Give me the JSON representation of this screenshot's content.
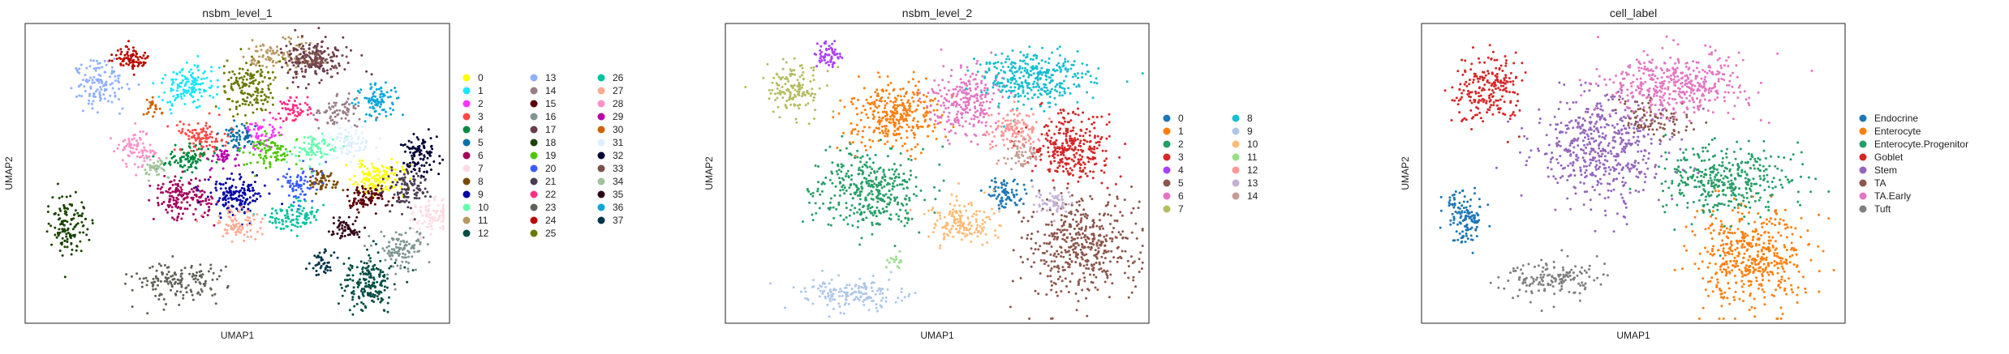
{
  "figure": {
    "panels": [
      {
        "title": "nsbm_level_1",
        "xlabel": "UMAP1",
        "ylabel": "UMAP2",
        "legend_columns": 3,
        "legend": [
          {
            "label": "0",
            "color": "#ffff00"
          },
          {
            "label": "1",
            "color": "#1ce6ff"
          },
          {
            "label": "2",
            "color": "#ff34ff"
          },
          {
            "label": "3",
            "color": "#ff4a46"
          },
          {
            "label": "4",
            "color": "#008941"
          },
          {
            "label": "5",
            "color": "#006fa6"
          },
          {
            "label": "6",
            "color": "#a30059"
          },
          {
            "label": "7",
            "color": "#ffdbe5"
          },
          {
            "label": "8",
            "color": "#7a4900"
          },
          {
            "label": "9",
            "color": "#0000a6"
          },
          {
            "label": "10",
            "color": "#63ffac"
          },
          {
            "label": "11",
            "color": "#b79762"
          },
          {
            "label": "12",
            "color": "#004d43"
          },
          {
            "label": "13",
            "color": "#8fb0ff"
          },
          {
            "label": "14",
            "color": "#997d87"
          },
          {
            "label": "15",
            "color": "#5a0007"
          },
          {
            "label": "16",
            "color": "#809693"
          },
          {
            "label": "17",
            "color": "#6a3a4c"
          },
          {
            "label": "18",
            "color": "#1b4400"
          },
          {
            "label": "19",
            "color": "#4fc601"
          },
          {
            "label": "20",
            "color": "#3b5dff"
          },
          {
            "label": "21",
            "color": "#4a3b53"
          },
          {
            "label": "22",
            "color": "#ff2f80"
          },
          {
            "label": "23",
            "color": "#61615a"
          },
          {
            "label": "24",
            "color": "#ba0900"
          },
          {
            "label": "25",
            "color": "#6b7900"
          },
          {
            "label": "26",
            "color": "#00c2a0"
          },
          {
            "label": "27",
            "color": "#ffaa92"
          },
          {
            "label": "28",
            "color": "#ff90c9"
          },
          {
            "label": "29",
            "color": "#b903aa"
          },
          {
            "label": "30",
            "color": "#d16100"
          },
          {
            "label": "31",
            "color": "#ddefff"
          },
          {
            "label": "32",
            "color": "#000035"
          },
          {
            "label": "33",
            "color": "#7b4f4b"
          },
          {
            "label": "34",
            "color": "#a1c299"
          },
          {
            "label": "35",
            "color": "#300018"
          },
          {
            "label": "36",
            "color": "#0aa6d8"
          },
          {
            "label": "37",
            "color": "#013349"
          }
        ]
      },
      {
        "title": "nsbm_level_2",
        "xlabel": "UMAP1",
        "ylabel": "UMAP2",
        "legend_columns": 2,
        "legend": [
          {
            "label": "0",
            "color": "#1f77b4"
          },
          {
            "label": "1",
            "color": "#ff7f0e"
          },
          {
            "label": "2",
            "color": "#279e68"
          },
          {
            "label": "3",
            "color": "#d62728"
          },
          {
            "label": "4",
            "color": "#aa40fc"
          },
          {
            "label": "5",
            "color": "#8c564b"
          },
          {
            "label": "6",
            "color": "#e377c2"
          },
          {
            "label": "7",
            "color": "#b5bd61"
          },
          {
            "label": "8",
            "color": "#17becf"
          },
          {
            "label": "9",
            "color": "#aec7e8"
          },
          {
            "label": "10",
            "color": "#ffbb78"
          },
          {
            "label": "11",
            "color": "#98df8a"
          },
          {
            "label": "12",
            "color": "#ff9896"
          },
          {
            "label": "13",
            "color": "#c5b0d5"
          },
          {
            "label": "14",
            "color": "#c49c94"
          }
        ]
      },
      {
        "title": "cell_label",
        "xlabel": "UMAP1",
        "ylabel": "UMAP2",
        "legend_columns": 1,
        "legend": [
          {
            "label": "Endocrine",
            "color": "#1f77b4"
          },
          {
            "label": "Enterocyte",
            "color": "#ff7f0e"
          },
          {
            "label": "Enterocyte.Progenitor",
            "color": "#279e68"
          },
          {
            "label": "Goblet",
            "color": "#d62728"
          },
          {
            "label": "Stem",
            "color": "#9467bd"
          },
          {
            "label": "TA",
            "color": "#8c564b"
          },
          {
            "label": "TA.Early",
            "color": "#e377c2"
          },
          {
            "label": "Tuft",
            "color": "#7f7f7f"
          }
        ]
      }
    ]
  },
  "chart_data": [
    {
      "type": "scatter",
      "title": "nsbm_level_1",
      "xlabel": "UMAP1",
      "ylabel": "UMAP2",
      "grid": false,
      "ticks": false,
      "legend_position": "right",
      "clusters": [
        {
          "label": "0",
          "color": "#ffff00",
          "cx": 0.83,
          "cy": 0.48,
          "rx": 0.05,
          "ry": 0.05,
          "n": 140
        },
        {
          "label": "1",
          "color": "#1ce6ff",
          "cx": 0.39,
          "cy": 0.79,
          "rx": 0.06,
          "ry": 0.07,
          "n": 150
        },
        {
          "label": "2",
          "color": "#ff34ff",
          "cx": 0.55,
          "cy": 0.63,
          "rx": 0.05,
          "ry": 0.05,
          "n": 60
        },
        {
          "label": "3",
          "color": "#ff4a46",
          "cx": 0.42,
          "cy": 0.62,
          "rx": 0.06,
          "ry": 0.05,
          "n": 110
        },
        {
          "label": "4",
          "color": "#008941",
          "cx": 0.38,
          "cy": 0.55,
          "rx": 0.05,
          "ry": 0.04,
          "n": 90
        },
        {
          "label": "5",
          "color": "#006fa6",
          "cx": 0.51,
          "cy": 0.62,
          "rx": 0.04,
          "ry": 0.04,
          "n": 60
        },
        {
          "label": "6",
          "color": "#a30059",
          "cx": 0.37,
          "cy": 0.42,
          "rx": 0.06,
          "ry": 0.07,
          "n": 160
        },
        {
          "label": "7",
          "color": "#ffdbe5",
          "cx": 0.96,
          "cy": 0.36,
          "rx": 0.05,
          "ry": 0.05,
          "n": 100
        },
        {
          "label": "8",
          "color": "#7a4900",
          "cx": 0.7,
          "cy": 0.47,
          "rx": 0.04,
          "ry": 0.04,
          "n": 60
        },
        {
          "label": "9",
          "color": "#0000a6",
          "cx": 0.5,
          "cy": 0.43,
          "rx": 0.06,
          "ry": 0.06,
          "n": 150
        },
        {
          "label": "10",
          "color": "#63ffac",
          "cx": 0.68,
          "cy": 0.58,
          "rx": 0.05,
          "ry": 0.04,
          "n": 80
        },
        {
          "label": "11",
          "color": "#b79762",
          "cx": 0.6,
          "cy": 0.89,
          "rx": 0.07,
          "ry": 0.05,
          "n": 110
        },
        {
          "label": "12",
          "color": "#004d43",
          "cx": 0.81,
          "cy": 0.13,
          "rx": 0.06,
          "ry": 0.08,
          "n": 180
        },
        {
          "label": "13",
          "color": "#8fb0ff",
          "cx": 0.18,
          "cy": 0.8,
          "rx": 0.06,
          "ry": 0.07,
          "n": 130
        },
        {
          "label": "14",
          "color": "#997d87",
          "cx": 0.74,
          "cy": 0.7,
          "rx": 0.05,
          "ry": 0.05,
          "n": 70
        },
        {
          "label": "15",
          "color": "#5a0007",
          "cx": 0.8,
          "cy": 0.42,
          "rx": 0.05,
          "ry": 0.04,
          "n": 90
        },
        {
          "label": "16",
          "color": "#809693",
          "cx": 0.89,
          "cy": 0.25,
          "rx": 0.05,
          "ry": 0.06,
          "n": 110
        },
        {
          "label": "17",
          "color": "#6a3a4c",
          "cx": 0.68,
          "cy": 0.88,
          "rx": 0.07,
          "ry": 0.06,
          "n": 150
        },
        {
          "label": "18",
          "color": "#1b4400",
          "cx": 0.1,
          "cy": 0.33,
          "rx": 0.04,
          "ry": 0.1,
          "n": 130
        },
        {
          "label": "19",
          "color": "#4fc601",
          "cx": 0.58,
          "cy": 0.57,
          "rx": 0.05,
          "ry": 0.05,
          "n": 90
        },
        {
          "label": "20",
          "color": "#3b5dff",
          "cx": 0.65,
          "cy": 0.46,
          "rx": 0.04,
          "ry": 0.05,
          "n": 70
        },
        {
          "label": "21",
          "color": "#4a3b53",
          "cx": 0.9,
          "cy": 0.45,
          "rx": 0.05,
          "ry": 0.06,
          "n": 110
        },
        {
          "label": "22",
          "color": "#ff2f80",
          "cx": 0.63,
          "cy": 0.71,
          "rx": 0.04,
          "ry": 0.04,
          "n": 60
        },
        {
          "label": "23",
          "color": "#61615a",
          "cx": 0.37,
          "cy": 0.14,
          "rx": 0.1,
          "ry": 0.06,
          "n": 150
        },
        {
          "label": "24",
          "color": "#ba0900",
          "cx": 0.25,
          "cy": 0.88,
          "rx": 0.04,
          "ry": 0.04,
          "n": 80
        },
        {
          "label": "25",
          "color": "#6b7900",
          "cx": 0.53,
          "cy": 0.79,
          "rx": 0.06,
          "ry": 0.08,
          "n": 160
        },
        {
          "label": "26",
          "color": "#00c2a0",
          "cx": 0.63,
          "cy": 0.36,
          "rx": 0.06,
          "ry": 0.04,
          "n": 100
        },
        {
          "label": "27",
          "color": "#ffaa92",
          "cx": 0.5,
          "cy": 0.33,
          "rx": 0.05,
          "ry": 0.04,
          "n": 80
        },
        {
          "label": "28",
          "color": "#ff90c9",
          "cx": 0.26,
          "cy": 0.58,
          "rx": 0.04,
          "ry": 0.05,
          "n": 80
        },
        {
          "label": "29",
          "color": "#b903aa",
          "cx": 0.46,
          "cy": 0.55,
          "rx": 0.03,
          "ry": 0.03,
          "n": 40
        },
        {
          "label": "30",
          "color": "#d16100",
          "cx": 0.3,
          "cy": 0.72,
          "rx": 0.02,
          "ry": 0.03,
          "n": 25
        },
        {
          "label": "31",
          "color": "#ddefff",
          "cx": 0.77,
          "cy": 0.6,
          "rx": 0.05,
          "ry": 0.05,
          "n": 80
        },
        {
          "label": "32",
          "color": "#000035",
          "cx": 0.93,
          "cy": 0.56,
          "rx": 0.04,
          "ry": 0.06,
          "n": 100
        },
        {
          "label": "33",
          "color": "#7b4f4b",
          "cx": 0.69,
          "cy": 0.88,
          "rx": 0.04,
          "ry": 0.04,
          "n": 60
        },
        {
          "label": "34",
          "color": "#a1c299",
          "cx": 0.3,
          "cy": 0.52,
          "rx": 0.03,
          "ry": 0.03,
          "n": 40
        },
        {
          "label": "35",
          "color": "#300018",
          "cx": 0.75,
          "cy": 0.32,
          "rx": 0.04,
          "ry": 0.04,
          "n": 60
        },
        {
          "label": "36",
          "color": "#0aa6d8",
          "cx": 0.83,
          "cy": 0.74,
          "rx": 0.05,
          "ry": 0.05,
          "n": 90
        },
        {
          "label": "37",
          "color": "#013349",
          "cx": 0.7,
          "cy": 0.2,
          "rx": 0.03,
          "ry": 0.04,
          "n": 40
        }
      ]
    },
    {
      "type": "scatter",
      "title": "nsbm_level_2",
      "xlabel": "UMAP1",
      "ylabel": "UMAP2",
      "grid": false,
      "ticks": false,
      "legend_position": "right",
      "clusters": [
        {
          "label": "0",
          "color": "#1f77b4",
          "cx": 0.66,
          "cy": 0.43,
          "rx": 0.04,
          "ry": 0.05,
          "n": 80
        },
        {
          "label": "1",
          "color": "#ff7f0e",
          "cx": 0.4,
          "cy": 0.7,
          "rx": 0.1,
          "ry": 0.1,
          "n": 320
        },
        {
          "label": "2",
          "color": "#279e68",
          "cx": 0.34,
          "cy": 0.44,
          "rx": 0.12,
          "ry": 0.12,
          "n": 380
        },
        {
          "label": "3",
          "color": "#d62728",
          "cx": 0.82,
          "cy": 0.58,
          "rx": 0.09,
          "ry": 0.1,
          "n": 300
        },
        {
          "label": "4",
          "color": "#aa40fc",
          "cx": 0.24,
          "cy": 0.89,
          "rx": 0.03,
          "ry": 0.04,
          "n": 60
        },
        {
          "label": "5",
          "color": "#8c564b",
          "cx": 0.84,
          "cy": 0.25,
          "rx": 0.12,
          "ry": 0.15,
          "n": 450
        },
        {
          "label": "6",
          "color": "#e377c2",
          "cx": 0.57,
          "cy": 0.74,
          "rx": 0.08,
          "ry": 0.1,
          "n": 260
        },
        {
          "label": "7",
          "color": "#b5bd61",
          "cx": 0.16,
          "cy": 0.78,
          "rx": 0.06,
          "ry": 0.08,
          "n": 150
        },
        {
          "label": "8",
          "color": "#17becf",
          "cx": 0.73,
          "cy": 0.82,
          "rx": 0.12,
          "ry": 0.08,
          "n": 340
        },
        {
          "label": "9",
          "color": "#aec7e8",
          "cx": 0.3,
          "cy": 0.1,
          "rx": 0.11,
          "ry": 0.05,
          "n": 160
        },
        {
          "label": "10",
          "color": "#ffbb78",
          "cx": 0.56,
          "cy": 0.34,
          "rx": 0.08,
          "ry": 0.06,
          "n": 160
        },
        {
          "label": "11",
          "color": "#98df8a",
          "cx": 0.4,
          "cy": 0.2,
          "rx": 0.02,
          "ry": 0.02,
          "n": 15
        },
        {
          "label": "12",
          "color": "#ff9896",
          "cx": 0.68,
          "cy": 0.64,
          "rx": 0.06,
          "ry": 0.06,
          "n": 120
        },
        {
          "label": "13",
          "color": "#c5b0d5",
          "cx": 0.78,
          "cy": 0.4,
          "rx": 0.04,
          "ry": 0.04,
          "n": 60
        },
        {
          "label": "14",
          "color": "#c49c94",
          "cx": 0.7,
          "cy": 0.56,
          "rx": 0.04,
          "ry": 0.04,
          "n": 50
        }
      ]
    },
    {
      "type": "scatter",
      "title": "cell_label",
      "xlabel": "UMAP1",
      "ylabel": "UMAP2",
      "grid": false,
      "ticks": false,
      "legend_position": "right",
      "clusters": [
        {
          "label": "Endocrine",
          "color": "#1f77b4",
          "cx": 0.1,
          "cy": 0.36,
          "rx": 0.04,
          "ry": 0.09,
          "n": 130
        },
        {
          "label": "Enterocyte",
          "color": "#ff7f0e",
          "cx": 0.78,
          "cy": 0.22,
          "rx": 0.12,
          "ry": 0.16,
          "n": 480
        },
        {
          "label": "Enterocyte.Progenitor",
          "color": "#279e68",
          "cx": 0.72,
          "cy": 0.48,
          "rx": 0.14,
          "ry": 0.11,
          "n": 380
        },
        {
          "label": "Goblet",
          "color": "#d62728",
          "cx": 0.16,
          "cy": 0.78,
          "rx": 0.07,
          "ry": 0.11,
          "n": 220
        },
        {
          "label": "Stem",
          "color": "#9467bd",
          "cx": 0.42,
          "cy": 0.58,
          "rx": 0.14,
          "ry": 0.16,
          "n": 520
        },
        {
          "label": "TA",
          "color": "#8c564b",
          "cx": 0.55,
          "cy": 0.68,
          "rx": 0.08,
          "ry": 0.06,
          "n": 90
        },
        {
          "label": "TA.Early",
          "color": "#e377c2",
          "cx": 0.6,
          "cy": 0.8,
          "rx": 0.15,
          "ry": 0.09,
          "n": 420
        },
        {
          "label": "Tuft",
          "color": "#7f7f7f",
          "cx": 0.32,
          "cy": 0.15,
          "rx": 0.1,
          "ry": 0.06,
          "n": 150
        }
      ]
    }
  ]
}
